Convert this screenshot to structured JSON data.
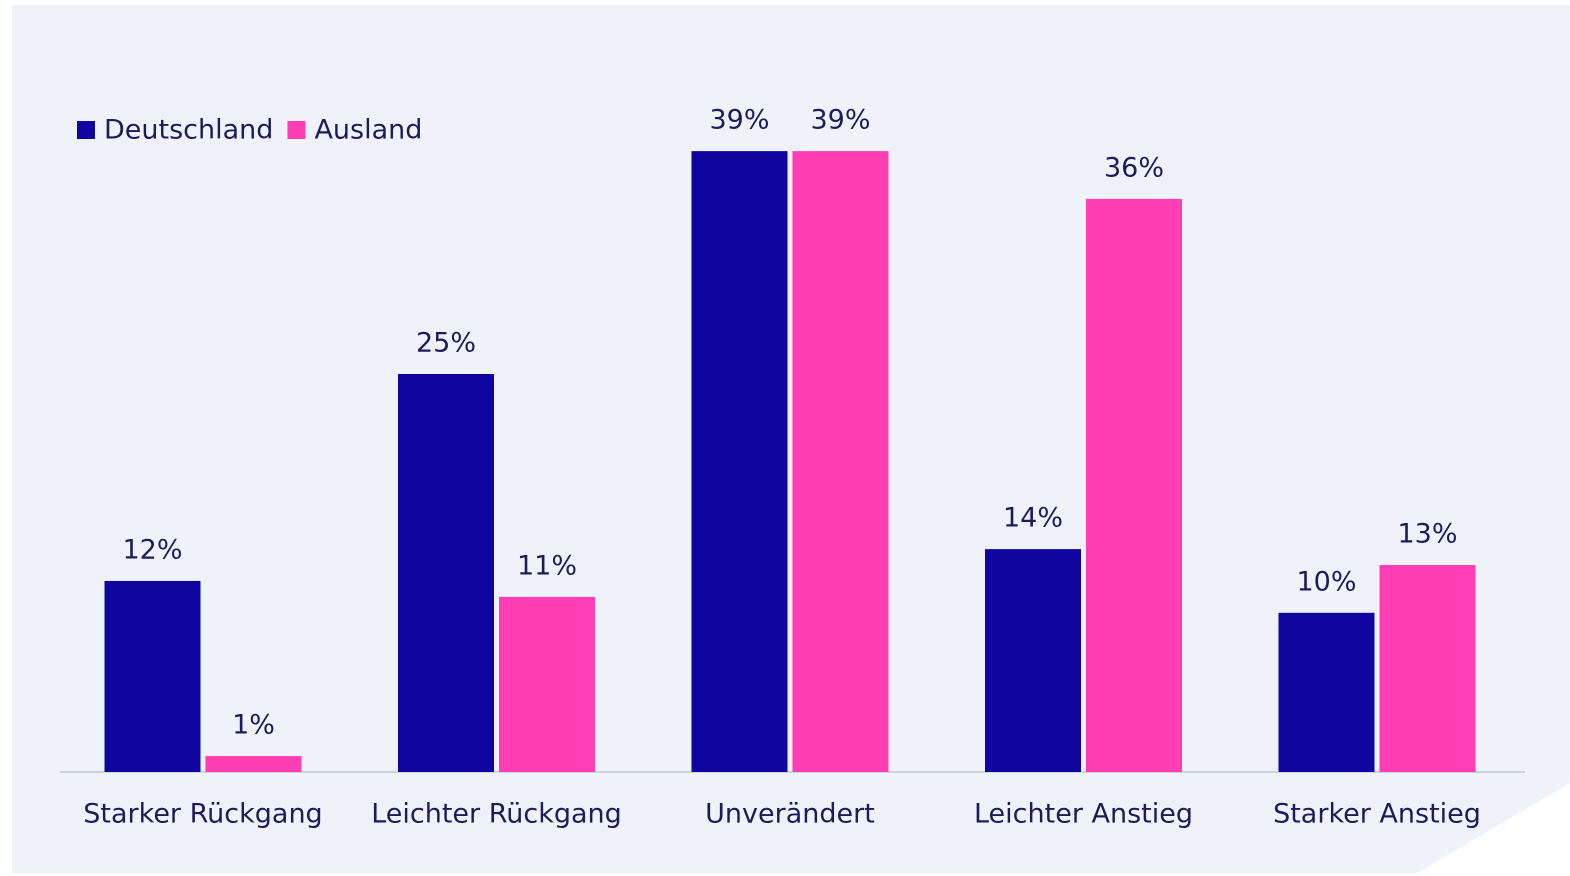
{
  "chart_data": {
    "type": "bar",
    "categories": [
      "Starker Rückgang",
      "Leichter Rückgang",
      "Unverändert",
      "Leichter Anstieg",
      "Starker Anstieg"
    ],
    "series": [
      {
        "name": "Deutschland",
        "color": "#10069f",
        "values": [
          12,
          25,
          39,
          14,
          10
        ],
        "value_labels": [
          "12%",
          "25%",
          "39%",
          "14%",
          "10%"
        ]
      },
      {
        "name": "Ausland",
        "color": "#ff3eb5",
        "values": [
          1,
          11,
          39,
          36,
          13
        ],
        "value_labels": [
          "1%",
          "11%",
          "39%",
          "36%",
          "13%"
        ]
      }
    ],
    "legend": "top-left"
  }
}
